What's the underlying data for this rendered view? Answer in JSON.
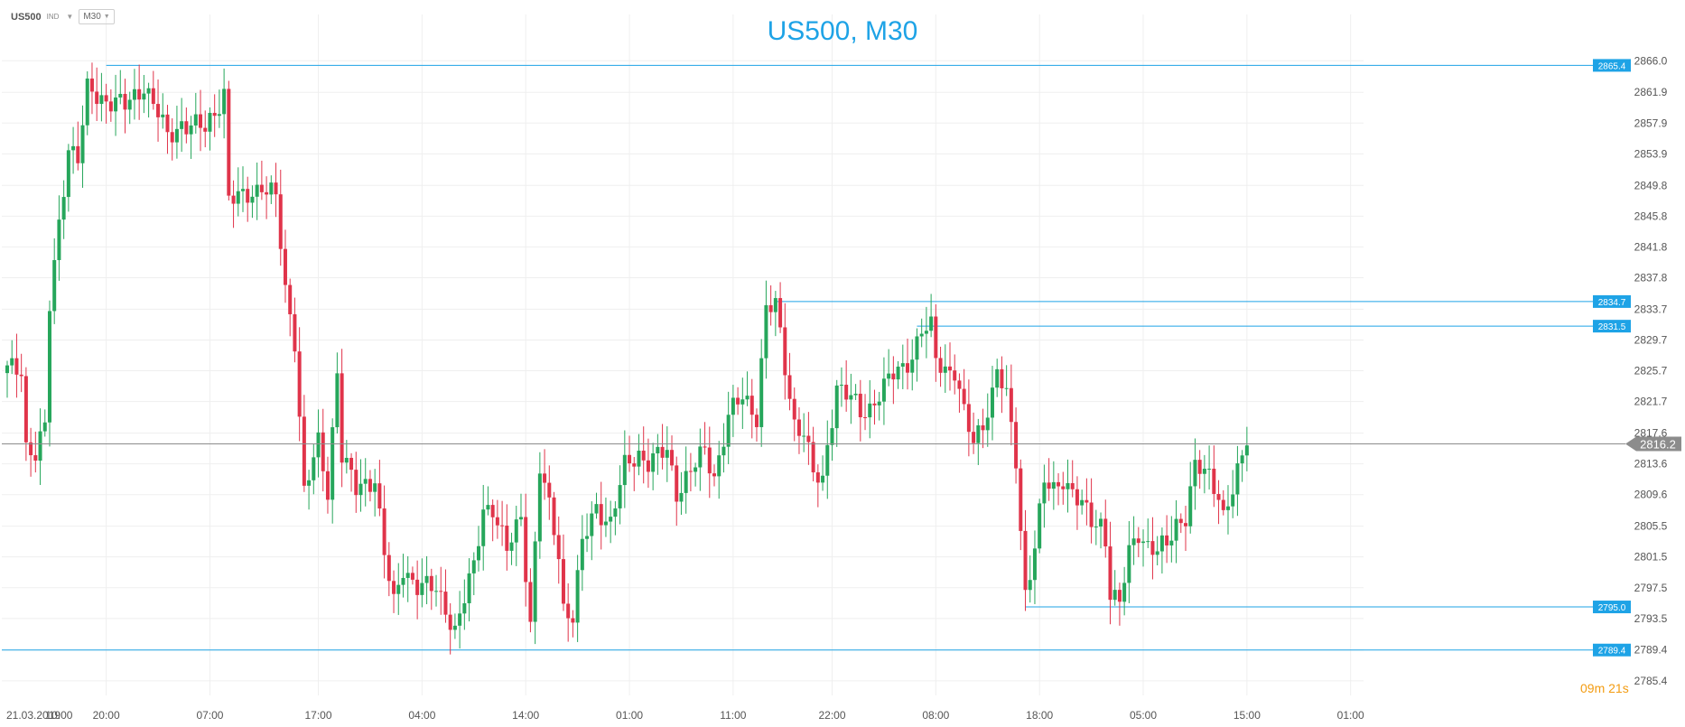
{
  "toolbar": {
    "symbol": "US500",
    "badge": "IND",
    "timeframe": "M30"
  },
  "timer": "09m 21s",
  "colors": {
    "up": "#26a65b",
    "down": "#e0344a",
    "level": "#1ea3e6",
    "current": "#8c8c8c",
    "grid": "#efefef"
  },
  "chart_data": {
    "type": "candlestick",
    "title": "US500, M30",
    "ylim": [
      2783.5,
      2868.5
    ],
    "y_ticks": [
      "2866.0",
      "2861.9",
      "2857.9",
      "2853.9",
      "2849.8",
      "2845.8",
      "2841.8",
      "2837.8",
      "2833.7",
      "2829.7",
      "2825.7",
      "2821.7",
      "2817.6",
      "2813.6",
      "2809.6",
      "2805.5",
      "2801.5",
      "2797.5",
      "2793.5",
      "2789.4",
      "2785.4"
    ],
    "x_labels": [
      "21.03.2019",
      "10:00",
      "20:00",
      "07:00",
      "17:00",
      "04:00",
      "14:00",
      "01:00",
      "11:00",
      "22:00",
      "08:00",
      "18:00",
      "05:00",
      "15:00",
      "01:00"
    ],
    "x_label_idx": [
      0,
      11,
      21,
      43,
      66,
      88,
      110,
      132,
      154,
      175,
      197,
      219,
      241,
      263,
      285
    ],
    "levels": [
      {
        "label": "2865.4",
        "price": 2865.4,
        "from": 21
      },
      {
        "label": "2834.7",
        "price": 2834.7,
        "from": 163
      },
      {
        "label": "2831.5",
        "price": 2831.5,
        "from": 193
      },
      {
        "label": "2795.0",
        "price": 2795.0,
        "from": 216
      },
      {
        "label": "2789.4",
        "price": 2789.4,
        "from": 0
      }
    ],
    "current_price": 2816.2,
    "current_label": "2816.2",
    "anchors": [
      [
        0,
        2825.7
      ],
      [
        3,
        2826
      ],
      [
        4,
        2816
      ],
      [
        6,
        2815
      ],
      [
        8,
        2818
      ],
      [
        9,
        2834
      ],
      [
        11,
        2845
      ],
      [
        13,
        2855
      ],
      [
        15,
        2853
      ],
      [
        17,
        2862
      ],
      [
        18,
        2862
      ],
      [
        21,
        2861
      ],
      [
        25,
        2860
      ],
      [
        29,
        2863
      ],
      [
        32,
        2859
      ],
      [
        34,
        2856
      ],
      [
        37,
        2858
      ],
      [
        42,
        2857
      ],
      [
        46,
        2862
      ],
      [
        47,
        2848
      ],
      [
        50,
        2848
      ],
      [
        54,
        2850
      ],
      [
        57,
        2848
      ],
      [
        59,
        2836
      ],
      [
        61,
        2830
      ],
      [
        63,
        2810
      ],
      [
        66,
        2816
      ],
      [
        68,
        2810
      ],
      [
        70,
        2826
      ],
      [
        71,
        2815
      ],
      [
        74,
        2810
      ],
      [
        78,
        2812
      ],
      [
        80,
        2802
      ],
      [
        82,
        2795
      ],
      [
        84,
        2800
      ],
      [
        87,
        2798
      ],
      [
        91,
        2797
      ],
      [
        93,
        2795
      ],
      [
        95,
        2792
      ],
      [
        99,
        2800
      ],
      [
        101,
        2808
      ],
      [
        103,
        2808
      ],
      [
        106,
        2802
      ],
      [
        109,
        2807
      ],
      [
        111,
        2793
      ],
      [
        113,
        2813
      ],
      [
        116,
        2805
      ],
      [
        117,
        2802
      ],
      [
        118,
        2795
      ],
      [
        120,
        2794
      ],
      [
        122,
        2803
      ],
      [
        125,
        2808
      ],
      [
        128,
        2806
      ],
      [
        131,
        2813
      ],
      [
        134,
        2815
      ],
      [
        136,
        2814
      ],
      [
        140,
        2815
      ],
      [
        142,
        2810
      ],
      [
        144,
        2812
      ],
      [
        148,
        2815
      ],
      [
        150,
        2812
      ],
      [
        153,
        2820
      ],
      [
        156,
        2822
      ],
      [
        159,
        2820
      ],
      [
        161,
        2834
      ],
      [
        163,
        2834
      ],
      [
        165,
        2826
      ],
      [
        167,
        2819
      ],
      [
        169,
        2818
      ],
      [
        171,
        2812
      ],
      [
        173,
        2811
      ],
      [
        174,
        2816
      ],
      [
        176,
        2824
      ],
      [
        179,
        2822
      ],
      [
        181,
        2820
      ],
      [
        183,
        2821
      ],
      [
        185,
        2823
      ],
      [
        188,
        2825
      ],
      [
        190,
        2826
      ],
      [
        192,
        2828
      ],
      [
        194,
        2831
      ],
      [
        196,
        2831
      ],
      [
        197,
        2827
      ],
      [
        199,
        2826
      ],
      [
        201,
        2826
      ],
      [
        203,
        2820
      ],
      [
        205,
        2816
      ],
      [
        207,
        2819
      ],
      [
        209,
        2823
      ],
      [
        210,
        2826
      ],
      [
        212,
        2822
      ],
      [
        214,
        2814
      ],
      [
        215,
        2805
      ],
      [
        216,
        2797
      ],
      [
        218,
        2803
      ],
      [
        220,
        2811
      ],
      [
        222,
        2810
      ],
      [
        224,
        2812
      ],
      [
        226,
        2810
      ],
      [
        228,
        2808
      ],
      [
        230,
        2806
      ],
      [
        232,
        2806
      ],
      [
        233,
        2804
      ],
      [
        234,
        2797
      ],
      [
        236,
        2795
      ],
      [
        238,
        2802
      ],
      [
        240,
        2805
      ],
      [
        242,
        2803
      ],
      [
        244,
        2802
      ],
      [
        246,
        2803
      ],
      [
        248,
        2806
      ],
      [
        250,
        2807
      ],
      [
        252,
        2813
      ],
      [
        255,
        2812
      ],
      [
        257,
        2810
      ],
      [
        258,
        2807
      ],
      [
        260,
        2810
      ],
      [
        262,
        2814
      ],
      [
        263,
        2816
      ]
    ]
  }
}
